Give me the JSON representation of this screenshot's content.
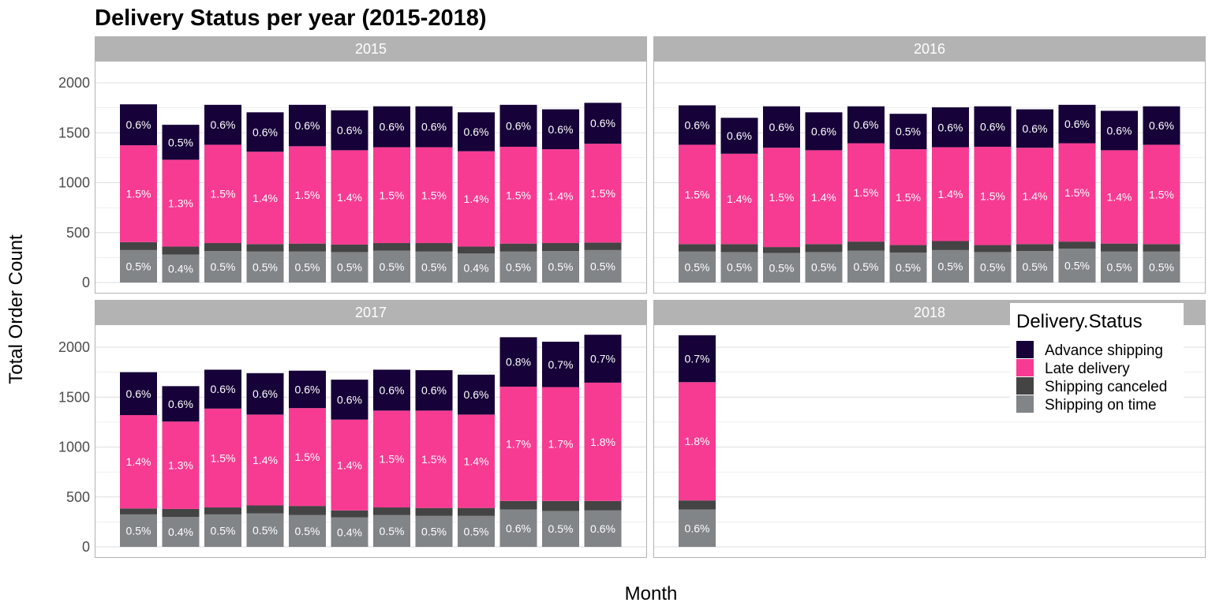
{
  "chart_data": {
    "type": "bar",
    "stacked": true,
    "faceted_by": "year",
    "title": "Delivery Status per year (2015-2018)",
    "xlabel": "Month",
    "ylabel": "Total Order Count",
    "ylim": [
      0,
      2200
    ],
    "yticks": [
      0,
      500,
      1000,
      1500,
      2000
    ],
    "grid": true,
    "legend_title": "Delivery.Status",
    "legend_position": "top-right",
    "series": [
      {
        "name": "Advance shipping",
        "color": "#160238"
      },
      {
        "name": "Late delivery",
        "color": "#f73b92"
      },
      {
        "name": "Shipping canceled",
        "color": "#444444"
      },
      {
        "name": "Shipping on time",
        "color": "#818588"
      }
    ],
    "facets": [
      {
        "year": "2015",
        "totals": [
          1785,
          1580,
          1780,
          1705,
          1780,
          1725,
          1765,
          1765,
          1705,
          1780,
          1735,
          1800
        ],
        "shipping_on_time": [
          325,
          280,
          315,
          310,
          310,
          305,
          320,
          310,
          290,
          310,
          315,
          325
        ],
        "shipping_canceled": [
          80,
          80,
          80,
          75,
          80,
          75,
          75,
          85,
          70,
          80,
          80,
          75
        ],
        "late_delivery": [
          970,
          870,
          985,
          925,
          975,
          945,
          960,
          960,
          955,
          970,
          940,
          990
        ],
        "advance_shipping": [
          410,
          350,
          400,
          395,
          415,
          400,
          410,
          410,
          390,
          420,
          400,
          410
        ],
        "labels_on_time": [
          "0.5%",
          "0.4%",
          "0.5%",
          "0.5%",
          "0.5%",
          "0.5%",
          "0.5%",
          "0.5%",
          "0.4%",
          "0.5%",
          "0.5%",
          "0.5%"
        ],
        "labels_late": [
          "1.5%",
          "1.3%",
          "1.5%",
          "1.4%",
          "1.5%",
          "1.4%",
          "1.5%",
          "1.5%",
          "1.4%",
          "1.5%",
          "1.4%",
          "1.5%"
        ],
        "labels_advance": [
          "0.6%",
          "0.5%",
          "0.6%",
          "0.6%",
          "0.6%",
          "0.6%",
          "0.6%",
          "0.6%",
          "0.6%",
          "0.6%",
          "0.6%",
          "0.6%"
        ]
      },
      {
        "year": "2016",
        "totals": [
          1775,
          1650,
          1765,
          1705,
          1765,
          1690,
          1755,
          1765,
          1735,
          1780,
          1720,
          1765
        ],
        "shipping_on_time": [
          310,
          305,
          295,
          305,
          320,
          300,
          325,
          305,
          315,
          340,
          310,
          310
        ],
        "shipping_canceled": [
          75,
          80,
          60,
          80,
          90,
          75,
          90,
          70,
          70,
          70,
          80,
          75
        ],
        "late_delivery": [
          995,
          905,
          995,
          940,
          985,
          960,
          940,
          985,
          965,
          985,
          935,
          995
        ],
        "advance_shipping": [
          395,
          360,
          415,
          380,
          370,
          355,
          400,
          405,
          385,
          385,
          395,
          385
        ],
        "labels_on_time": [
          "0.5%",
          "0.5%",
          "0.5%",
          "0.5%",
          "0.5%",
          "0.5%",
          "0.5%",
          "0.5%",
          "0.5%",
          "0.5%",
          "0.5%",
          "0.5%"
        ],
        "labels_late": [
          "1.5%",
          "1.4%",
          "1.5%",
          "1.4%",
          "1.5%",
          "1.5%",
          "1.4%",
          "1.5%",
          "1.4%",
          "1.5%",
          "1.4%",
          "1.5%"
        ],
        "labels_advance": [
          "0.6%",
          "0.6%",
          "0.6%",
          "0.6%",
          "0.6%",
          "0.5%",
          "0.6%",
          "0.6%",
          "0.6%",
          "0.6%",
          "0.6%",
          "0.6%"
        ]
      },
      {
        "year": "2017",
        "totals": [
          1750,
          1610,
          1775,
          1740,
          1765,
          1675,
          1775,
          1770,
          1725,
          2100,
          2055,
          2125
        ],
        "shipping_on_time": [
          325,
          300,
          325,
          335,
          320,
          295,
          320,
          310,
          310,
          375,
          360,
          365
        ],
        "shipping_canceled": [
          60,
          80,
          70,
          80,
          90,
          70,
          75,
          80,
          80,
          85,
          100,
          95
        ],
        "late_delivery": [
          935,
          875,
          990,
          910,
          980,
          910,
          970,
          975,
          935,
          1145,
          1140,
          1185
        ],
        "advance_shipping": [
          430,
          355,
          390,
          415,
          375,
          400,
          410,
          405,
          400,
          495,
          455,
          480
        ],
        "labels_on_time": [
          "0.5%",
          "0.4%",
          "0.5%",
          "0.5%",
          "0.5%",
          "0.4%",
          "0.5%",
          "0.5%",
          "0.5%",
          "0.6%",
          "0.5%",
          "0.6%"
        ],
        "labels_late": [
          "1.4%",
          "1.3%",
          "1.5%",
          "1.4%",
          "1.5%",
          "1.4%",
          "1.5%",
          "1.5%",
          "1.4%",
          "1.7%",
          "1.7%",
          "1.8%"
        ],
        "labels_advance": [
          "0.6%",
          "0.6%",
          "0.6%",
          "0.6%",
          "0.6%",
          "0.6%",
          "0.6%",
          "0.6%",
          "0.6%",
          "0.8%",
          "0.7%",
          "0.7%"
        ]
      },
      {
        "year": "2018",
        "totals": [
          2120
        ],
        "shipping_on_time": [
          375
        ],
        "shipping_canceled": [
          90
        ],
        "late_delivery": [
          1185
        ],
        "advance_shipping": [
          470
        ],
        "labels_on_time": [
          "0.6%"
        ],
        "labels_late": [
          "1.8%"
        ],
        "labels_advance": [
          "0.7%"
        ]
      }
    ]
  }
}
